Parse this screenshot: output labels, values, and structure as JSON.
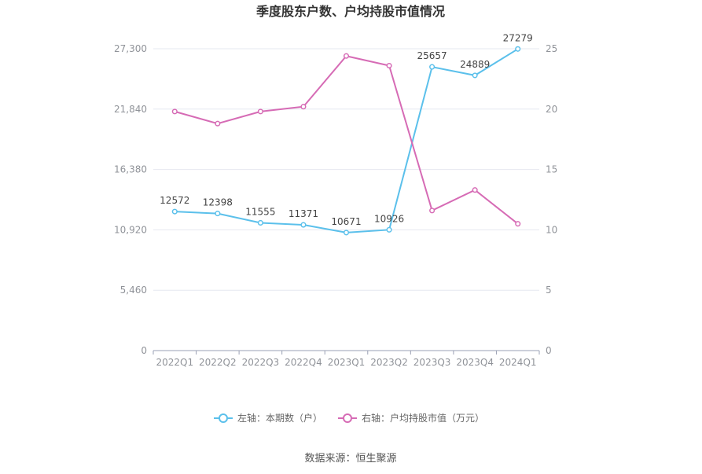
{
  "chart_data": {
    "type": "line",
    "title": "季度股东户数、户均持股市值情况",
    "categories": [
      "2022Q1",
      "2022Q2",
      "2022Q3",
      "2022Q4",
      "2023Q1",
      "2023Q2",
      "2023Q3",
      "2023Q4",
      "2024Q1"
    ],
    "y_left": {
      "ticks": [
        0,
        5460,
        10920,
        16380,
        21840,
        27300
      ],
      "tick_labels": [
        "0",
        "5,460",
        "10,920",
        "16,380",
        "21,840",
        "27,300"
      ],
      "ylim": [
        0,
        27300
      ]
    },
    "y_right": {
      "ticks": [
        0,
        5,
        10,
        15,
        20,
        25
      ],
      "tick_labels": [
        "0",
        "5",
        "10",
        "15",
        "20",
        "25"
      ],
      "ylim": [
        0,
        25
      ]
    },
    "series": [
      {
        "name": "左轴：本期数（户）",
        "axis": "left",
        "color": "#5bc0eb",
        "values": [
          12572,
          12398,
          11555,
          11371,
          10671,
          10926,
          25657,
          24889,
          27279
        ],
        "labels": [
          "12572",
          "12398",
          "11555",
          "11371",
          "10671",
          "10926",
          "25657",
          "24889",
          "27279"
        ]
      },
      {
        "name": "右轴：户均持股市值（万元）",
        "axis": "right",
        "color": "#d66bb5",
        "values": [
          19.8,
          18.8,
          19.8,
          20.2,
          24.4,
          23.6,
          11.6,
          13.3,
          10.5
        ]
      }
    ],
    "grid": true,
    "legend_position": "bottom"
  },
  "source_text": "数据来源：恒生聚源"
}
